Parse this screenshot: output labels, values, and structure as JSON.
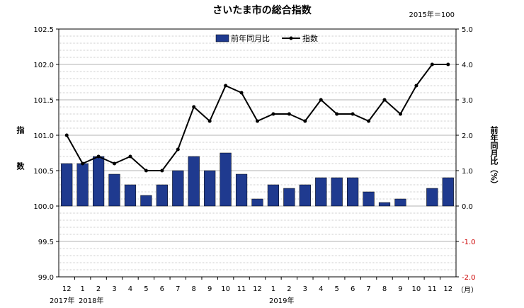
{
  "chart_data": {
    "type": "bar",
    "title": "さいたま市の総合指数",
    "base_note": "2015年＝100",
    "categories": [
      "12",
      "1",
      "2",
      "3",
      "4",
      "5",
      "6",
      "7",
      "8",
      "9",
      "10",
      "11",
      "12",
      "1",
      "2",
      "3",
      "4",
      "5",
      "6",
      "7",
      "8",
      "9",
      "10",
      "11",
      "12"
    ],
    "x_unit": "（月）",
    "year_labels": [
      "2017年",
      "2018年",
      "2019年"
    ],
    "ylabel_left": "指数",
    "ylabel_right": "前年同月比（%）",
    "ylim_left": [
      99.0,
      102.5
    ],
    "ylim_right": [
      -2.0,
      5.0
    ],
    "yticks_left": [
      "99.0",
      "99.5",
      "100.0",
      "100.5",
      "101.0",
      "101.5",
      "102.0",
      "102.5"
    ],
    "yticks_right": [
      "-2.0",
      "-1.0",
      "0.0",
      "1.0",
      "2.0",
      "3.0",
      "4.0",
      "5.0"
    ],
    "grid": true,
    "legend_position": "top-center",
    "series": [
      {
        "name": "前年同月比",
        "type": "bar",
        "axis": "right",
        "color": "#1f3a8f",
        "values": [
          1.2,
          1.2,
          1.4,
          0.9,
          0.6,
          0.3,
          0.6,
          1.0,
          1.4,
          1.0,
          1.5,
          0.9,
          0.2,
          0.6,
          0.5,
          0.6,
          0.8,
          0.8,
          0.8,
          0.4,
          0.1,
          0.2,
          0.0,
          0.5,
          0.8
        ]
      },
      {
        "name": "指数",
        "type": "line",
        "axis": "left",
        "color": "#000000",
        "values": [
          101.0,
          100.6,
          100.7,
          100.6,
          100.7,
          100.5,
          100.5,
          100.8,
          101.4,
          101.2,
          101.7,
          101.6,
          101.2,
          101.3,
          101.3,
          101.2,
          101.5,
          101.3,
          101.3,
          101.2,
          101.5,
          101.3,
          101.7,
          102.0,
          102.0
        ]
      }
    ]
  },
  "colors": {
    "negative_tick": "#cc0000",
    "grid": "#9a9a9a"
  }
}
